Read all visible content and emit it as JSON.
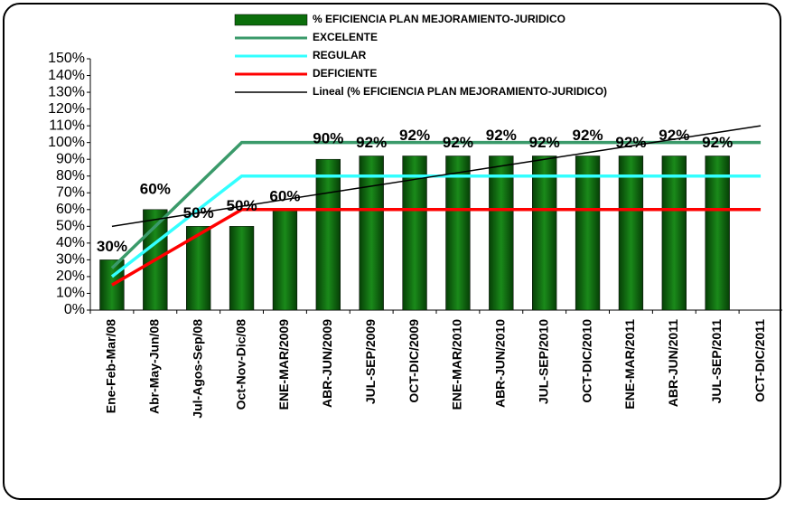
{
  "chart_data": {
    "type": "bar",
    "categories": [
      "Ene-Feb-Mar/08",
      "Abr-May-Jun/08",
      "Jul-Agos-Sep/08",
      "Oct-Nov-Dic/08",
      "ENE-MAR/2009",
      "ABR-JUN/2009",
      "JUL-SEP/2009",
      "OCT-DIC/2009",
      "ENE-MAR/2010",
      "ABR-JUN/2010",
      "JUL-SEP/2010",
      "OCT-DIC/2010",
      "ENE-MAR/2011",
      "ABR-JUN/2011",
      "JUL-SEP/2011",
      "OCT-DIC/2011"
    ],
    "series": [
      {
        "name": "% EFICIENCIA PLAN MEJORAMIENTO-JURIDICO",
        "type": "bar",
        "color": "#0b6e0b",
        "values": [
          30,
          60,
          50,
          50,
          60,
          90,
          92,
          92,
          92,
          92,
          92,
          92,
          92,
          92,
          92,
          null
        ],
        "value_labels": [
          "30%",
          "60%",
          "50%",
          "50%",
          "60%",
          "90%",
          "92%",
          "92%",
          "92%",
          "92%",
          "92%",
          "92%",
          "92%",
          "92%",
          "92%",
          null
        ]
      },
      {
        "name": "EXCELENTE",
        "type": "line",
        "color": "#3a9a6a",
        "values": [
          25,
          50,
          75,
          100,
          100,
          100,
          100,
          100,
          100,
          100,
          100,
          100,
          100,
          100,
          100,
          100
        ]
      },
      {
        "name": "REGULAR",
        "type": "line",
        "color": "#33ffff",
        "values": [
          20,
          40,
          60,
          80,
          80,
          80,
          80,
          80,
          80,
          80,
          80,
          80,
          80,
          80,
          80,
          80
        ]
      },
      {
        "name": "DEFICIENTE",
        "type": "line",
        "color": "#ff0000",
        "values": [
          15,
          30,
          45,
          60,
          60,
          60,
          60,
          60,
          60,
          60,
          60,
          60,
          60,
          60,
          60,
          60
        ]
      },
      {
        "name": "Lineal (% EFICIENCIA PLAN MEJORAMIENTO-JURIDICO)",
        "type": "line",
        "color": "#000000",
        "values": [
          50,
          54,
          58,
          62,
          66,
          70,
          74,
          78,
          82,
          86,
          90,
          94,
          98,
          102,
          106,
          110
        ]
      }
    ],
    "ylim": [
      0,
      150
    ],
    "yticks": [
      {
        "value": 0,
        "label": "0%"
      },
      {
        "value": 10,
        "label": "10%"
      },
      {
        "value": 20,
        "label": "20%"
      },
      {
        "value": 30,
        "label": "30%"
      },
      {
        "value": 40,
        "label": "40%"
      },
      {
        "value": 50,
        "label": "50%"
      },
      {
        "value": 60,
        "label": "60%"
      },
      {
        "value": 70,
        "label": "70%"
      },
      {
        "value": 80,
        "label": "80%"
      },
      {
        "value": 90,
        "label": "90%"
      },
      {
        "value": 100,
        "label": "100%"
      },
      {
        "value": 110,
        "label": "110%"
      },
      {
        "value": 120,
        "label": "120%"
      },
      {
        "value": 130,
        "label": "130%"
      },
      {
        "value": 140,
        "label": "140%"
      },
      {
        "value": 150,
        "label": "150%"
      }
    ]
  }
}
